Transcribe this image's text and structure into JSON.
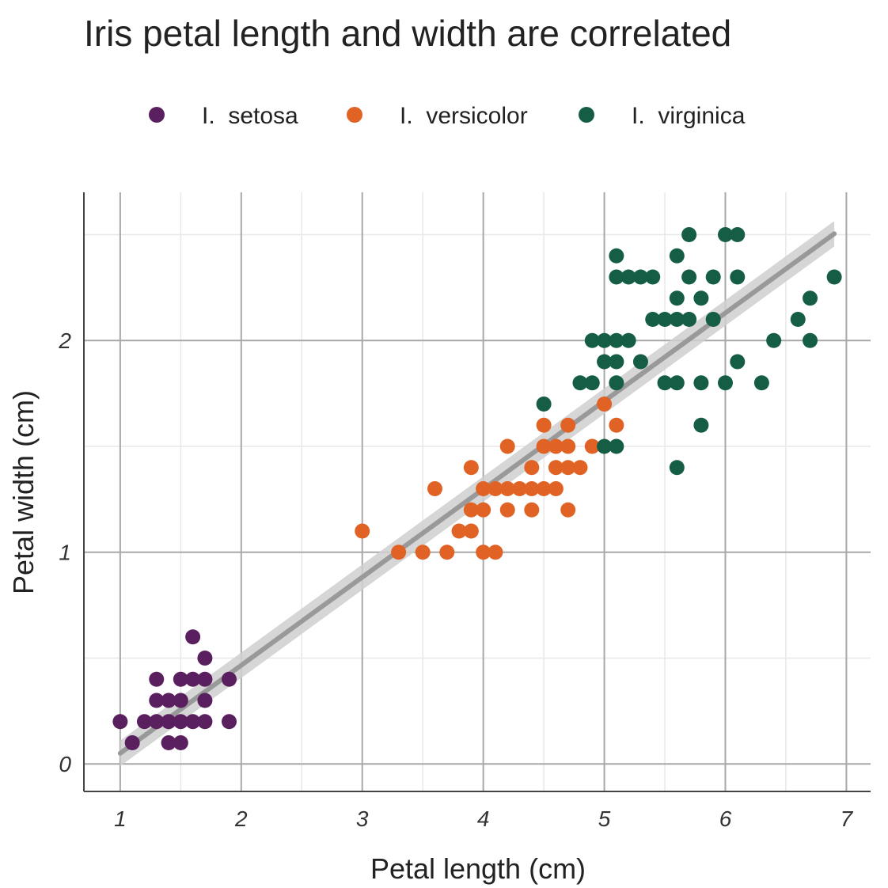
{
  "chart_data": {
    "type": "scatter",
    "title": "Iris petal length and width are correlated",
    "xlabel": "Petal length (cm)",
    "ylabel": "Petal width (cm)",
    "xlim": [
      0.7,
      7.2
    ],
    "ylim": [
      -0.13,
      2.7
    ],
    "xticks": [
      1,
      2,
      3,
      4,
      5,
      6,
      7
    ],
    "yticks": [
      0,
      1,
      2
    ],
    "grid": true,
    "legend_position": "top",
    "trend_line": {
      "type": "linear",
      "slope": 0.416,
      "intercept": -0.366,
      "x_range": [
        1.0,
        6.9
      ],
      "color": "#999999"
    },
    "series": [
      {
        "name": "I.  setosa",
        "color": "#5a1f5f",
        "points": [
          [
            1.0,
            0.2
          ],
          [
            1.1,
            0.1
          ],
          [
            1.2,
            0.2
          ],
          [
            1.3,
            0.2
          ],
          [
            1.3,
            0.3
          ],
          [
            1.3,
            0.4
          ],
          [
            1.4,
            0.1
          ],
          [
            1.4,
            0.2
          ],
          [
            1.4,
            0.3
          ],
          [
            1.5,
            0.1
          ],
          [
            1.5,
            0.2
          ],
          [
            1.5,
            0.3
          ],
          [
            1.5,
            0.4
          ],
          [
            1.6,
            0.2
          ],
          [
            1.6,
            0.4
          ],
          [
            1.6,
            0.6
          ],
          [
            1.7,
            0.2
          ],
          [
            1.7,
            0.3
          ],
          [
            1.7,
            0.4
          ],
          [
            1.7,
            0.5
          ],
          [
            1.9,
            0.2
          ],
          [
            1.9,
            0.4
          ]
        ]
      },
      {
        "name": "I.  versicolor",
        "color": "#e06224",
        "points": [
          [
            3.0,
            1.1
          ],
          [
            3.3,
            1.0
          ],
          [
            3.5,
            1.0
          ],
          [
            3.6,
            1.3
          ],
          [
            3.7,
            1.0
          ],
          [
            3.8,
            1.1
          ],
          [
            3.9,
            1.1
          ],
          [
            3.9,
            1.2
          ],
          [
            3.9,
            1.4
          ],
          [
            4.0,
            1.0
          ],
          [
            4.0,
            1.2
          ],
          [
            4.0,
            1.3
          ],
          [
            4.1,
            1.0
          ],
          [
            4.1,
            1.3
          ],
          [
            4.2,
            1.2
          ],
          [
            4.2,
            1.3
          ],
          [
            4.2,
            1.5
          ],
          [
            4.3,
            1.3
          ],
          [
            4.4,
            1.2
          ],
          [
            4.4,
            1.3
          ],
          [
            4.4,
            1.4
          ],
          [
            4.5,
            1.3
          ],
          [
            4.5,
            1.5
          ],
          [
            4.5,
            1.6
          ],
          [
            4.6,
            1.3
          ],
          [
            4.6,
            1.4
          ],
          [
            4.6,
            1.5
          ],
          [
            4.7,
            1.2
          ],
          [
            4.7,
            1.4
          ],
          [
            4.7,
            1.5
          ],
          [
            4.7,
            1.6
          ],
          [
            4.8,
            1.4
          ],
          [
            4.9,
            1.5
          ],
          [
            5.0,
            1.7
          ],
          [
            5.1,
            1.6
          ]
        ]
      },
      {
        "name": "I.  virginica",
        "color": "#155e45",
        "points": [
          [
            4.5,
            1.7
          ],
          [
            4.8,
            1.8
          ],
          [
            4.9,
            1.8
          ],
          [
            4.9,
            2.0
          ],
          [
            5.0,
            1.5
          ],
          [
            5.0,
            1.9
          ],
          [
            5.0,
            2.0
          ],
          [
            5.1,
            1.5
          ],
          [
            5.1,
            1.8
          ],
          [
            5.1,
            1.9
          ],
          [
            5.1,
            2.0
          ],
          [
            5.1,
            2.3
          ],
          [
            5.1,
            2.4
          ],
          [
            5.2,
            2.0
          ],
          [
            5.2,
            2.3
          ],
          [
            5.3,
            1.9
          ],
          [
            5.3,
            2.3
          ],
          [
            5.4,
            2.1
          ],
          [
            5.4,
            2.3
          ],
          [
            5.5,
            1.8
          ],
          [
            5.5,
            2.1
          ],
          [
            5.6,
            1.4
          ],
          [
            5.6,
            1.8
          ],
          [
            5.6,
            2.1
          ],
          [
            5.6,
            2.2
          ],
          [
            5.6,
            2.4
          ],
          [
            5.7,
            2.1
          ],
          [
            5.7,
            2.3
          ],
          [
            5.7,
            2.5
          ],
          [
            5.8,
            1.6
          ],
          [
            5.8,
            1.8
          ],
          [
            5.8,
            2.2
          ],
          [
            5.9,
            2.1
          ],
          [
            5.9,
            2.3
          ],
          [
            6.0,
            1.8
          ],
          [
            6.0,
            2.5
          ],
          [
            6.1,
            1.9
          ],
          [
            6.1,
            2.3
          ],
          [
            6.1,
            2.5
          ],
          [
            6.3,
            1.8
          ],
          [
            6.4,
            2.0
          ],
          [
            6.6,
            2.1
          ],
          [
            6.7,
            2.0
          ],
          [
            6.7,
            2.2
          ],
          [
            6.9,
            2.3
          ]
        ]
      }
    ]
  }
}
